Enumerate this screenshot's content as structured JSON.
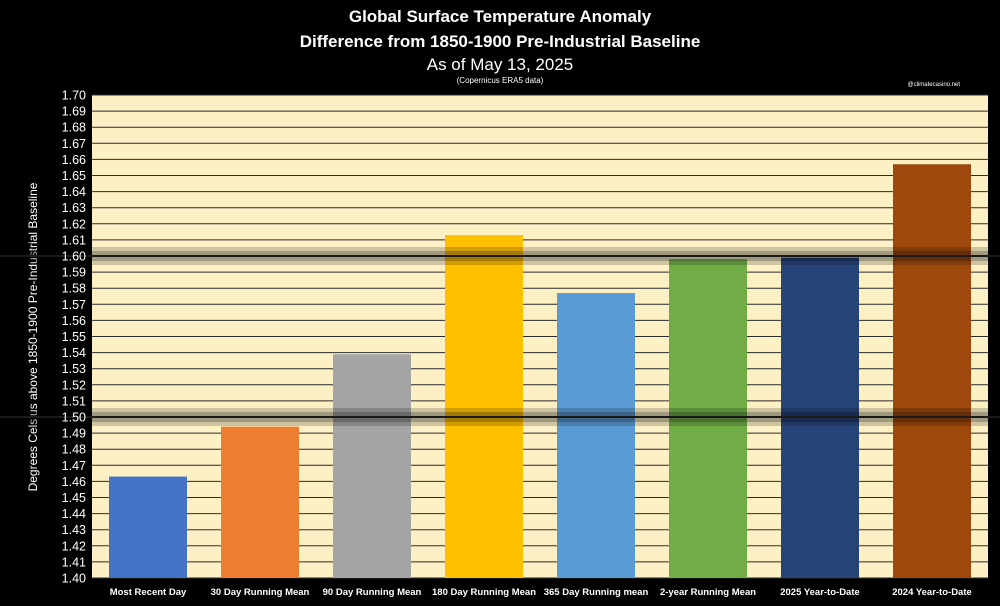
{
  "chart_data": {
    "type": "bar",
    "title_lines": [
      "Global Surface Temperature Anomaly",
      "Difference from 1850-1900 Pre-Industrial Baseline",
      "As of May 13, 2025",
      "(Copernicus ERA5 data)"
    ],
    "credit": "@climatecasino.net",
    "ylabel": "Degrees Celsius above 1850-1900 Pre-Industrial Baseline",
    "ylim": [
      1.4,
      1.7
    ],
    "y_step": 0.01,
    "y_ticks": [
      "1.40",
      "1.41",
      "1.42",
      "1.43",
      "1.44",
      "1.45",
      "1.46",
      "1.47",
      "1.48",
      "1.49",
      "1.50",
      "1.51",
      "1.52",
      "1.53",
      "1.54",
      "1.55",
      "1.56",
      "1.57",
      "1.58",
      "1.59",
      "1.60",
      "1.61",
      "1.62",
      "1.63",
      "1.64",
      "1.65",
      "1.66",
      "1.67",
      "1.68",
      "1.69",
      "1.70"
    ],
    "categories": [
      "Most Recent Day",
      "30 Day Running Mean",
      "90 Day Running Mean",
      "180 Day Running Mean",
      "365 Day Running mean",
      "2-year Running Mean",
      "2025 Year-to-Date",
      "2024 Year-to-Date"
    ],
    "values": [
      1.463,
      1.494,
      1.539,
      1.613,
      1.577,
      1.598,
      1.599,
      1.657
    ],
    "bar_colors": [
      "#4472c4",
      "#ed7d31",
      "#a5a5a5",
      "#ffc000",
      "#5b9bd5",
      "#70ad47",
      "#264478",
      "#9e480e"
    ],
    "reference_lines": [
      1.5,
      1.6
    ],
    "grid": true,
    "plot_background": "#fdf0c4",
    "page_background": "#000000"
  }
}
